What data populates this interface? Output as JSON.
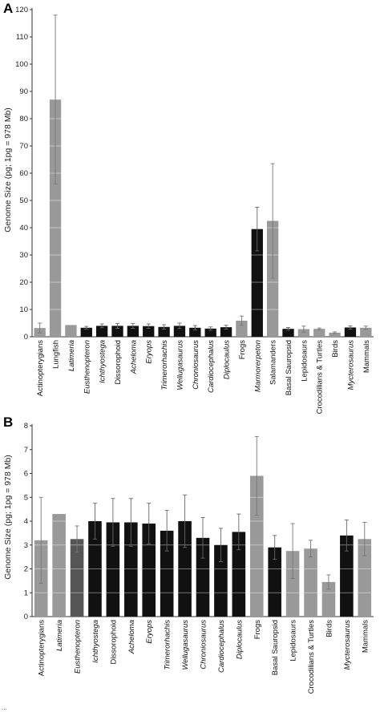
{
  "caption": "...",
  "chart_data": [
    {
      "type": "bar",
      "panel": "A",
      "ylabel": "Genome Size (pg; 1pg = 978 Mb)",
      "ylim": [
        0,
        120
      ],
      "yticks": [
        0,
        10,
        20,
        30,
        40,
        50,
        60,
        70,
        80,
        90,
        100,
        110,
        120
      ],
      "grid": false,
      "categories": [
        "Actinopterygians",
        "Lungfish",
        "Latimeria",
        "Eusthenopteron",
        "Ichthyostega",
        "Dissorophoid",
        "Acheloma",
        "Eryops",
        "Trimerorhachis",
        "Wellugasaurus",
        "Chroniosaurus",
        "Cardiocephalus",
        "Diplocaulus",
        "Frogs",
        "Marmorerpeton",
        "Salamanders",
        "Basal Sauropsid",
        "Lepidosaurs",
        "Crocodilians & Turtles",
        "Birds",
        "Mycterosaurus",
        "Mammals"
      ],
      "italic": [
        false,
        false,
        true,
        true,
        true,
        false,
        true,
        true,
        true,
        true,
        true,
        true,
        true,
        false,
        true,
        false,
        false,
        false,
        false,
        false,
        true,
        false
      ],
      "values": [
        3.2,
        87,
        4.3,
        3.3,
        4.0,
        4.0,
        4.0,
        3.9,
        3.6,
        4.0,
        3.3,
        3.0,
        3.5,
        5.9,
        39.5,
        42.5,
        2.9,
        2.8,
        2.9,
        1.5,
        3.4,
        3.3
      ],
      "errors": [
        1.8,
        31,
        0,
        0.5,
        0.7,
        0.9,
        0.9,
        0.8,
        0.8,
        1.0,
        0.8,
        0.6,
        0.7,
        1.7,
        8.0,
        21.0,
        0.5,
        1.1,
        0.3,
        0.3,
        0.6,
        0.6
      ],
      "colors": [
        "#999999",
        "#999999",
        "#999999",
        "#111111",
        "#111111",
        "#111111",
        "#111111",
        "#111111",
        "#111111",
        "#111111",
        "#111111",
        "#111111",
        "#111111",
        "#999999",
        "#111111",
        "#999999",
        "#111111",
        "#999999",
        "#999999",
        "#999999",
        "#111111",
        "#999999"
      ]
    },
    {
      "type": "bar",
      "panel": "B",
      "ylabel": "Genome Size (pg; 1pg = 978 Mb)",
      "ylim": [
        0,
        8
      ],
      "yticks": [
        0,
        1,
        2,
        3,
        4,
        5,
        6,
        7,
        8
      ],
      "grid": false,
      "categories": [
        "Actinopterygians",
        "Latimeria",
        "Eusthenopteron",
        "Ichthyostega",
        "Dissorophoid",
        "Acheloma",
        "Eryops",
        "Trimerorhachis",
        "Wellugasaurus",
        "Chroniosaurus",
        "Cardiocephalus",
        "Diplocaulus",
        "Frogs",
        "Basal Sauropsid",
        "Lepidosaurs",
        "Crocodilians & Turtles",
        "Birds",
        "Mycterosaurus",
        "Mammals"
      ],
      "italic": [
        false,
        true,
        true,
        true,
        false,
        true,
        true,
        true,
        true,
        true,
        true,
        true,
        false,
        false,
        false,
        false,
        false,
        true,
        false
      ],
      "values": [
        3.2,
        4.3,
        3.25,
        4.0,
        3.95,
        3.95,
        3.9,
        3.6,
        4.0,
        3.3,
        3.0,
        3.55,
        5.9,
        2.9,
        2.75,
        2.85,
        1.45,
        3.4,
        3.25
      ],
      "errors": [
        1.8,
        0,
        0.55,
        0.75,
        1.0,
        1.0,
        0.85,
        0.85,
        1.1,
        0.85,
        0.7,
        0.75,
        1.65,
        0.5,
        1.15,
        0.35,
        0.3,
        0.65,
        0.7
      ],
      "colors": [
        "#999999",
        "#999999",
        "#555555",
        "#111111",
        "#111111",
        "#111111",
        "#111111",
        "#111111",
        "#111111",
        "#111111",
        "#111111",
        "#111111",
        "#999999",
        "#111111",
        "#999999",
        "#999999",
        "#999999",
        "#111111",
        "#999999"
      ]
    }
  ]
}
